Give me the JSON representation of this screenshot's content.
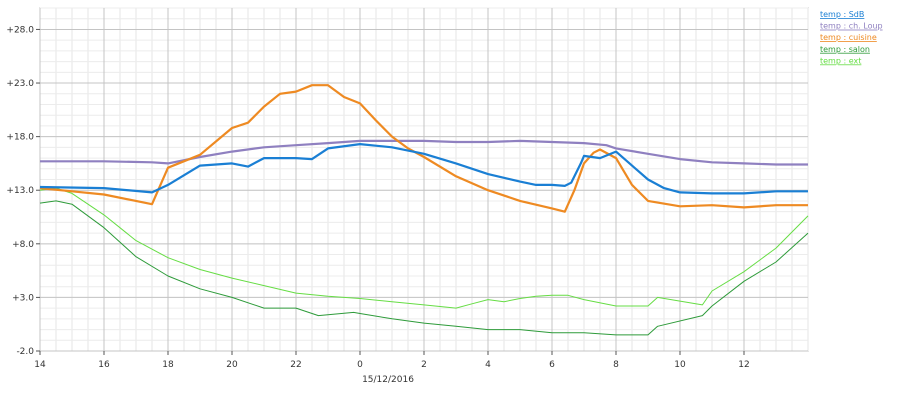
{
  "chart_data": {
    "type": "line",
    "xlabel": "15/12/2016",
    "x_unit": "hour of day (continuous, 14:00 on 14/12 to ~14:00 on 15/12)",
    "xlim": [
      14,
      38
    ],
    "ylim": [
      -2,
      30
    ],
    "grid": true,
    "legend_position": "right",
    "x_tick_values": [
      14,
      16,
      18,
      20,
      22,
      24,
      26,
      28,
      30,
      32,
      34,
      36
    ],
    "x_tick_labels": [
      "14",
      "16",
      "18",
      "20",
      "22",
      "0",
      "2",
      "4",
      "6",
      "8",
      "10",
      "12"
    ],
    "y_tick_values": [
      -2,
      3,
      8,
      13,
      18,
      23,
      28
    ],
    "y_tick_labels": [
      "-2.0",
      "+3.0",
      "+8.0",
      "+13.0",
      "+18.0",
      "+23.0",
      "+28.0"
    ],
    "series": [
      {
        "name": "temp : SdB",
        "color": "#1a7fd4",
        "x": [
          14,
          16,
          17.5,
          18,
          19,
          20,
          20.5,
          21,
          22,
          22.5,
          23,
          24,
          25,
          26,
          27,
          28,
          29,
          29.5,
          30,
          30.4,
          30.6,
          30.9,
          31,
          31.5,
          32,
          32.5,
          33,
          33.5,
          34,
          35,
          36,
          37,
          38
        ],
        "y": [
          13.3,
          13.2,
          12.8,
          13.5,
          15.3,
          15.5,
          15.2,
          16.0,
          16.0,
          15.9,
          16.9,
          17.3,
          17.0,
          16.4,
          15.5,
          14.5,
          13.8,
          13.5,
          13.5,
          13.4,
          13.7,
          15.5,
          16.2,
          16.0,
          16.6,
          15.3,
          14.0,
          13.2,
          12.8,
          12.7,
          12.7,
          12.9,
          12.9
        ]
      },
      {
        "name": "temp : ch. Loup",
        "color": "#8f80c0",
        "x": [
          14,
          16,
          17.5,
          18,
          19,
          20,
          21,
          22,
          23,
          24,
          25,
          26,
          27,
          28,
          29,
          30,
          31,
          31.7,
          32,
          33,
          34,
          35,
          36,
          37,
          38
        ],
        "y": [
          15.7,
          15.7,
          15.6,
          15.5,
          16.1,
          16.6,
          17.0,
          17.2,
          17.4,
          17.6,
          17.6,
          17.6,
          17.5,
          17.5,
          17.6,
          17.5,
          17.4,
          17.2,
          16.9,
          16.4,
          15.9,
          15.6,
          15.5,
          15.4,
          15.4
        ]
      },
      {
        "name": "temp : cuisine",
        "color": "#ee8a22",
        "x": [
          14,
          15,
          16,
          17.5,
          18,
          19,
          20,
          20.5,
          21,
          21.5,
          22,
          22.5,
          23,
          23.5,
          24,
          24.5,
          25,
          25.5,
          26,
          27,
          28,
          29,
          30,
          30.4,
          30.7,
          31,
          31.3,
          31.5,
          32,
          32.5,
          33,
          34,
          35,
          36,
          37,
          38
        ],
        "y": [
          13.2,
          12.9,
          12.6,
          11.7,
          15.1,
          16.3,
          18.8,
          19.3,
          20.8,
          22.0,
          22.2,
          22.8,
          22.8,
          21.7,
          21.1,
          19.5,
          18.0,
          16.9,
          16.1,
          14.3,
          13.0,
          12.0,
          11.3,
          11.0,
          13.0,
          15.5,
          16.5,
          16.8,
          16.0,
          13.5,
          12.0,
          11.5,
          11.6,
          11.4,
          11.6,
          11.6
        ]
      },
      {
        "name": "temp : salon",
        "color": "#2e9b3a",
        "x": [
          14,
          14.5,
          15,
          16,
          17,
          18,
          19,
          20,
          21,
          22,
          22.7,
          23.8,
          24,
          25,
          26,
          27,
          28,
          29,
          30,
          31,
          32,
          32.5,
          33,
          33.3,
          34.7,
          35,
          36,
          37,
          38
        ],
        "y": [
          11.8,
          12.0,
          11.7,
          9.5,
          6.8,
          5.0,
          3.8,
          3.0,
          2.0,
          2.0,
          1.3,
          1.6,
          1.5,
          1.0,
          0.6,
          0.3,
          0.0,
          0.0,
          -0.3,
          -0.3,
          -0.5,
          -0.5,
          -0.5,
          0.3,
          1.3,
          2.2,
          4.5,
          6.3,
          9.0
        ]
      },
      {
        "name": "temp : ext",
        "color": "#66dd44",
        "x": [
          14,
          14.5,
          15,
          16,
          17,
          18,
          19,
          20,
          21,
          22,
          23,
          24,
          25,
          26,
          27,
          27.5,
          28,
          28.5,
          29,
          29.5,
          30,
          30.5,
          31,
          32,
          33,
          33.3,
          34.7,
          35,
          36,
          37,
          38
        ],
        "y": [
          13.0,
          13.2,
          12.7,
          10.7,
          8.3,
          6.7,
          5.6,
          4.8,
          4.1,
          3.4,
          3.1,
          2.9,
          2.6,
          2.3,
          2.0,
          2.4,
          2.8,
          2.6,
          2.9,
          3.1,
          3.2,
          3.2,
          2.8,
          2.2,
          2.2,
          3.0,
          2.3,
          3.6,
          5.4,
          7.6,
          10.6
        ]
      }
    ]
  }
}
